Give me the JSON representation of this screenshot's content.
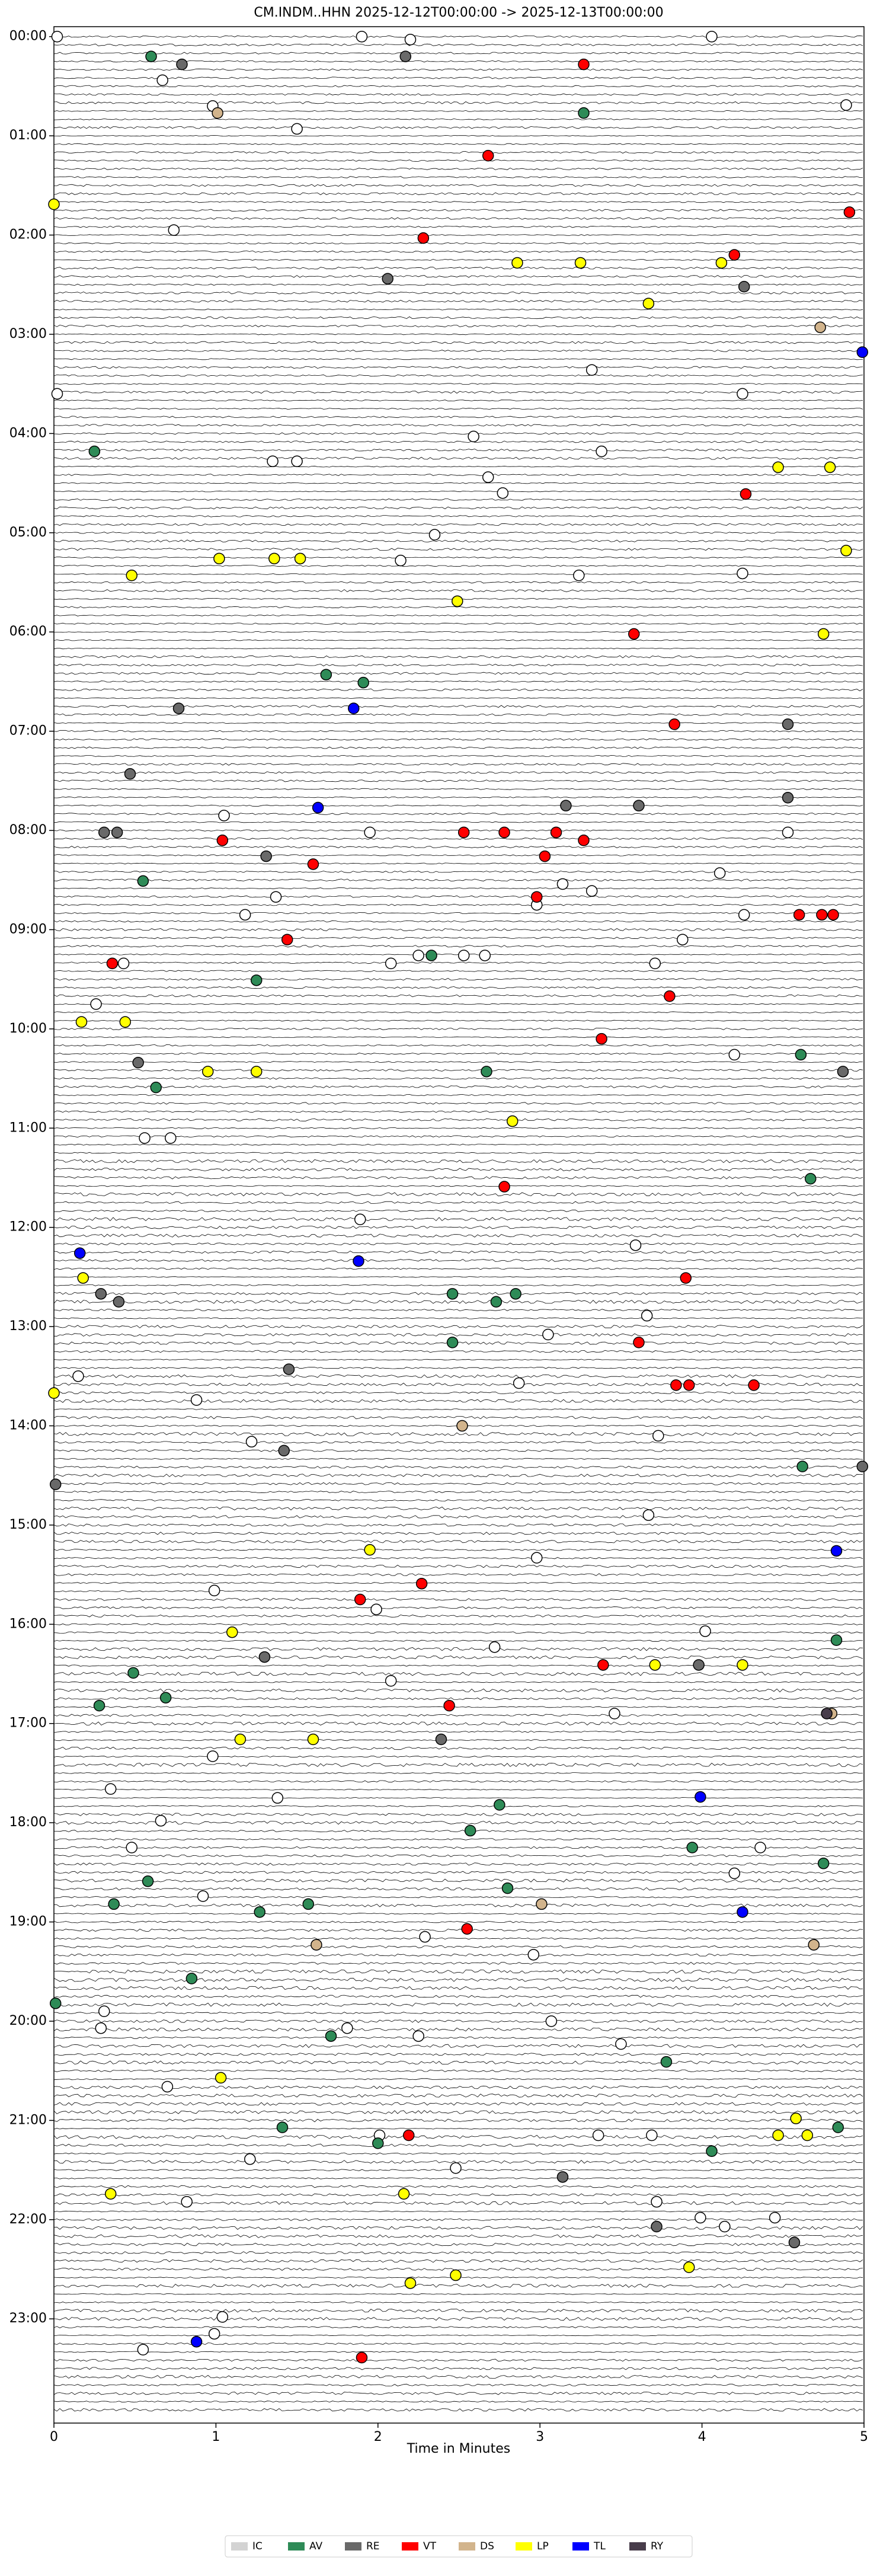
{
  "chart_data": {
    "type": "scatter",
    "title": "CM.INDM..HHN  2025-12-12T00:00:00 -> 2025-12-13T00:00:00",
    "x_label": "Time in Minutes",
    "xlim": [
      0,
      5
    ],
    "xticks": [
      0,
      1,
      2,
      3,
      4,
      5
    ],
    "ylim": [
      -0.1,
      24.05
    ],
    "y_inverted": true,
    "yticks": [
      {
        "value": 0,
        "label": "00:00"
      },
      {
        "value": 1,
        "label": "01:00"
      },
      {
        "value": 2,
        "label": "02:00"
      },
      {
        "value": 3,
        "label": "03:00"
      },
      {
        "value": 4,
        "label": "04:00"
      },
      {
        "value": 5,
        "label": "05:00"
      },
      {
        "value": 6,
        "label": "06:00"
      },
      {
        "value": 7,
        "label": "07:00"
      },
      {
        "value": 8,
        "label": "08:00"
      },
      {
        "value": 9,
        "label": "09:00"
      },
      {
        "value": 10,
        "label": "10:00"
      },
      {
        "value": 11,
        "label": "11:00"
      },
      {
        "value": 12,
        "label": "12:00"
      },
      {
        "value": 13,
        "label": "13:00"
      },
      {
        "value": 14,
        "label": "14:00"
      },
      {
        "value": 15,
        "label": "15:00"
      },
      {
        "value": 16,
        "label": "16:00"
      },
      {
        "value": 17,
        "label": "17:00"
      },
      {
        "value": 18,
        "label": "18:00"
      },
      {
        "value": 19,
        "label": "19:00"
      },
      {
        "value": 20,
        "label": "20:00"
      },
      {
        "value": 21,
        "label": "21:00"
      },
      {
        "value": 22,
        "label": "22:00"
      },
      {
        "value": 23,
        "label": "23:00"
      }
    ],
    "legend": "bottom",
    "series": [
      {
        "color": "#ffffff",
        "x": [
          0.02,
          1.9,
          2.2,
          4.06,
          0.67,
          0.98,
          1.5,
          4.89,
          0.74,
          3.32,
          4.25,
          0.02,
          2.59,
          3.38,
          1.35,
          1.5,
          2.68,
          2.77,
          2.35,
          2.14,
          3.24,
          4.25,
          1.95,
          1.05,
          4.53,
          4.11,
          3.14,
          3.32,
          1.18,
          1.37,
          2.98,
          3.88,
          4.26,
          2.25,
          2.53,
          2.66,
          2.08,
          3.71,
          0.43,
          0.26,
          4.2,
          0.72,
          0.56,
          1.89,
          3.59,
          3.05,
          3.66,
          0.15,
          0.88,
          2.87,
          3.73,
          1.22,
          3.67,
          2.98,
          0.99,
          1.99,
          4.02,
          2.08,
          2.72,
          3.46,
          0.98,
          0.35,
          1.38,
          0.66,
          4.36,
          0.48,
          0.92,
          4.2,
          2.29,
          2.96,
          0.31,
          0.29,
          1.81,
          3.07,
          2.25,
          3.5,
          0.7,
          2.01,
          3.36,
          3.69,
          2.48,
          1.21,
          0.82,
          3.72,
          3.99,
          4.45,
          1.04,
          0.55,
          0.99,
          4.14
        ],
        "values": [
          0,
          0,
          0.03,
          0,
          0.44,
          0.7,
          0.93,
          0.69,
          1.95,
          3.36,
          3.6,
          3.6,
          4.03,
          4.18,
          4.28,
          4.28,
          4.44,
          4.6,
          5.02,
          5.28,
          5.43,
          5.41,
          8.02,
          7.85,
          8.02,
          8.43,
          8.54,
          8.61,
          8.85,
          8.67,
          8.75,
          9.1,
          8.85,
          9.26,
          9.26,
          9.26,
          9.34,
          9.34,
          9.34,
          9.75,
          10.26,
          11.1,
          11.1,
          11.92,
          12.18,
          13.08,
          12.89,
          13.5,
          13.74,
          13.57,
          14.1,
          14.16,
          14.9,
          15.33,
          15.66,
          15.85,
          16.07,
          16.57,
          16.23,
          16.9,
          17.33,
          17.66,
          17.75,
          17.98,
          18.25,
          18.25,
          18.74,
          18.51,
          19.15,
          19.33,
          19.9,
          20.07,
          20.07,
          20.0,
          20.15,
          20.23,
          20.66,
          21.15,
          21.15,
          21.15,
          21.48,
          21.39,
          21.82,
          21.82,
          21.98,
          21.98,
          22.98,
          23.31,
          23.15,
          22.07
        ]
      },
      {
        "name": "IC",
        "color": "#d3d3d3",
        "x": [],
        "values": []
      },
      {
        "name": "AV",
        "color": "#2e8b57",
        "x": [
          0.6,
          3.27,
          0.25,
          1.68,
          1.91,
          0.55,
          1.25,
          2.33,
          2.67,
          4.61,
          0.63,
          4.67,
          2.46,
          2.73,
          2.85,
          2.46,
          4.62,
          4.83,
          0.49,
          0.69,
          0.28,
          2.75,
          2.57,
          3.94,
          0.58,
          0.37,
          1.27,
          1.57,
          2.8,
          4.75,
          0.85,
          0.01,
          1.71,
          3.78,
          2.0,
          1.41,
          4.06,
          4.84
        ],
        "values": [
          0.2,
          0.77,
          4.18,
          6.43,
          6.51,
          8.51,
          9.51,
          9.26,
          10.43,
          10.26,
          10.59,
          11.51,
          12.67,
          12.75,
          12.67,
          13.16,
          14.41,
          16.16,
          16.49,
          16.74,
          16.82,
          17.82,
          18.08,
          18.25,
          18.59,
          18.82,
          18.9,
          18.82,
          18.66,
          18.41,
          19.57,
          19.82,
          20.15,
          20.41,
          21.23,
          21.07,
          21.31,
          21.07
        ]
      },
      {
        "name": "RE",
        "color": "#696969",
        "x": [
          0.79,
          2.17,
          2.06,
          4.26,
          0.77,
          0.47,
          4.53,
          3.16,
          3.61,
          4.53,
          0.31,
          0.39,
          1.31,
          0.52,
          4.87,
          0.29,
          0.4,
          1.45,
          0.01,
          4.99,
          1.3,
          3.98,
          2.39,
          3.14,
          3.72,
          4.57,
          1.42
        ],
        "values": [
          0.28,
          0.2,
          2.44,
          2.52,
          6.77,
          7.43,
          6.93,
          7.75,
          7.75,
          7.67,
          8.02,
          8.02,
          8.26,
          10.34,
          10.43,
          12.67,
          12.75,
          13.43,
          14.59,
          14.41,
          16.33,
          16.41,
          17.16,
          21.57,
          22.07,
          22.23,
          14.25
        ]
      },
      {
        "name": "VT",
        "color": "#ff0000",
        "x": [
          3.27,
          2.68,
          4.91,
          2.28,
          4.2,
          4.27,
          3.58,
          3.83,
          1.04,
          2.53,
          2.78,
          3.1,
          3.27,
          3.03,
          2.98,
          1.6,
          1.44,
          0.36,
          3.8,
          3.38,
          4.6,
          4.74,
          4.81,
          2.78,
          3.9,
          3.61,
          3.84,
          3.92,
          4.32,
          1.89,
          2.27,
          3.39,
          2.44,
          2.55,
          2.19,
          1.9
        ],
        "values": [
          0.28,
          1.2,
          1.77,
          2.03,
          2.2,
          4.61,
          6.02,
          6.93,
          8.1,
          8.02,
          8.02,
          8.02,
          8.1,
          8.26,
          8.67,
          8.34,
          9.1,
          9.34,
          9.67,
          10.1,
          8.85,
          8.85,
          8.85,
          11.59,
          12.51,
          13.16,
          13.59,
          13.59,
          13.59,
          15.75,
          15.59,
          16.41,
          16.82,
          19.07,
          21.15,
          23.39
        ]
      },
      {
        "name": "DS",
        "color": "#d2b48c",
        "x": [
          4.73,
          1.01,
          2.52,
          1.62,
          3.01,
          4.69,
          4.8
        ],
        "values": [
          2.93,
          0.77,
          14.0,
          19.23,
          18.82,
          19.23,
          16.9
        ]
      },
      {
        "name": "LP",
        "color": "#ffff00",
        "x": [
          0,
          2.86,
          3.25,
          4.12,
          3.67,
          4.79,
          4.47,
          4.89,
          0.48,
          1.02,
          1.36,
          1.52,
          2.49,
          4.75,
          0.17,
          0.44,
          0.95,
          1.25,
          2.83,
          0.18,
          0,
          1.95,
          1.1,
          3.71,
          4.25,
          1.15,
          1.6,
          1.03,
          4.58,
          4.47,
          4.65,
          0.35,
          2.16,
          3.92,
          2.2,
          2.48
        ],
        "values": [
          1.69,
          2.28,
          2.28,
          2.28,
          2.69,
          4.34,
          4.34,
          5.18,
          5.43,
          5.26,
          5.26,
          5.26,
          5.69,
          6.02,
          9.93,
          9.93,
          10.43,
          10.43,
          10.93,
          12.51,
          13.67,
          15.25,
          16.08,
          16.41,
          16.41,
          17.16,
          17.16,
          20.57,
          20.98,
          21.15,
          21.15,
          21.74,
          21.74,
          22.48,
          22.64,
          22.56
        ]
      },
      {
        "name": "TL",
        "color": "#0000ff",
        "x": [
          4.99,
          1.63,
          1.85,
          0.16,
          1.88,
          4.83,
          3.99,
          4.25,
          0.88
        ],
        "values": [
          3.18,
          7.77,
          6.77,
          12.26,
          12.34,
          15.26,
          17.74,
          18.9,
          23.23
        ]
      },
      {
        "name": "RY",
        "color": "#483d4b",
        "x": [
          4.77
        ],
        "values": [
          16.9
        ]
      }
    ]
  }
}
